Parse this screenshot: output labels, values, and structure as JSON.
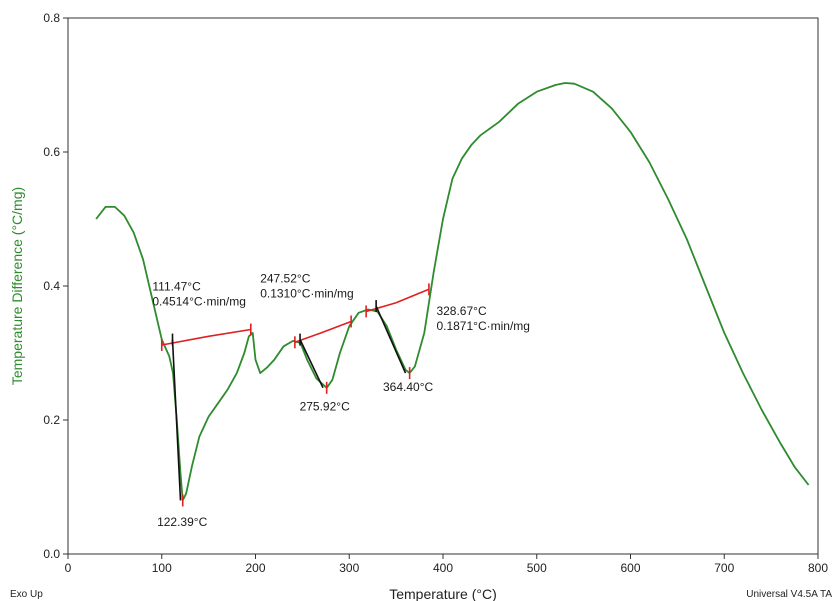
{
  "chart_data": {
    "type": "line",
    "xlabel": "Temperature (°C)",
    "ylabel": "Temperature Difference (°C/mg)",
    "xlim": [
      0,
      800
    ],
    "ylim": [
      0.0,
      0.8
    ],
    "x_ticks": [
      "0",
      "100",
      "200",
      "300",
      "400",
      "500",
      "600",
      "700",
      "800"
    ],
    "y_ticks": [
      "0.0",
      "0.2",
      "0.4",
      "0.6",
      "0.8"
    ],
    "footer_left": "Exo Up",
    "footer_right": "Universal V4.5A TA",
    "colors": {
      "curve": "#2e8b2e",
      "baseline": "#e02020",
      "tangent": "#111111",
      "axis_title_y": "#2e8b2e"
    },
    "series": [
      {
        "color": "#2e8b2e",
        "points": [
          [
            30,
            0.5
          ],
          [
            40,
            0.518
          ],
          [
            50,
            0.518
          ],
          [
            60,
            0.505
          ],
          [
            70,
            0.48
          ],
          [
            80,
            0.44
          ],
          [
            90,
            0.38
          ],
          [
            100,
            0.32
          ],
          [
            108,
            0.295
          ],
          [
            112,
            0.27
          ],
          [
            116,
            0.2
          ],
          [
            120,
            0.12
          ],
          [
            122.39,
            0.08
          ],
          [
            126,
            0.09
          ],
          [
            132,
            0.13
          ],
          [
            140,
            0.175
          ],
          [
            150,
            0.205
          ],
          [
            160,
            0.225
          ],
          [
            170,
            0.245
          ],
          [
            180,
            0.27
          ],
          [
            188,
            0.3
          ],
          [
            193,
            0.325
          ],
          [
            197,
            0.33
          ],
          [
            200,
            0.29
          ],
          [
            205,
            0.27
          ],
          [
            212,
            0.278
          ],
          [
            220,
            0.29
          ],
          [
            230,
            0.31
          ],
          [
            240,
            0.318
          ],
          [
            248,
            0.315
          ],
          [
            255,
            0.29
          ],
          [
            265,
            0.262
          ],
          [
            275.92,
            0.248
          ],
          [
            282,
            0.26
          ],
          [
            290,
            0.3
          ],
          [
            300,
            0.34
          ],
          [
            310,
            0.36
          ],
          [
            320,
            0.365
          ],
          [
            330,
            0.362
          ],
          [
            340,
            0.34
          ],
          [
            350,
            0.305
          ],
          [
            360,
            0.275
          ],
          [
            364.4,
            0.27
          ],
          [
            370,
            0.28
          ],
          [
            380,
            0.33
          ],
          [
            390,
            0.42
          ],
          [
            400,
            0.5
          ],
          [
            410,
            0.56
          ],
          [
            420,
            0.59
          ],
          [
            430,
            0.61
          ],
          [
            440,
            0.625
          ],
          [
            460,
            0.645
          ],
          [
            480,
            0.672
          ],
          [
            500,
            0.69
          ],
          [
            520,
            0.7
          ],
          [
            530,
            0.703
          ],
          [
            540,
            0.702
          ],
          [
            560,
            0.69
          ],
          [
            580,
            0.665
          ],
          [
            600,
            0.63
          ],
          [
            620,
            0.585
          ],
          [
            640,
            0.53
          ],
          [
            660,
            0.47
          ],
          [
            680,
            0.4
          ],
          [
            700,
            0.33
          ],
          [
            720,
            0.27
          ],
          [
            740,
            0.215
          ],
          [
            760,
            0.165
          ],
          [
            775,
            0.13
          ],
          [
            790,
            0.103
          ]
        ]
      }
    ],
    "baselines": [
      {
        "color": "#e02020",
        "points": [
          [
            100,
            0.312
          ],
          [
            150,
            0.325
          ],
          [
            195,
            0.335
          ]
        ]
      },
      {
        "color": "#e02020",
        "points": [
          [
            242,
            0.316
          ],
          [
            270,
            0.33
          ],
          [
            302,
            0.347
          ]
        ]
      },
      {
        "color": "#e02020",
        "points": [
          [
            318,
            0.362
          ],
          [
            350,
            0.375
          ],
          [
            385,
            0.395
          ]
        ]
      }
    ],
    "tangents": [
      {
        "color": "#111111",
        "points": [
          [
            111.47,
            0.32
          ],
          [
            120,
            0.08
          ]
        ]
      },
      {
        "color": "#111111",
        "points": [
          [
            247.52,
            0.32
          ],
          [
            272,
            0.248
          ]
        ]
      },
      {
        "color": "#111111",
        "points": [
          [
            328.67,
            0.37
          ],
          [
            360,
            0.27
          ]
        ]
      }
    ],
    "markers": [
      {
        "color": "#e02020",
        "point": [
          100,
          0.312
        ]
      },
      {
        "color": "#e02020",
        "point": [
          195,
          0.335
        ]
      },
      {
        "color": "#e02020",
        "point": [
          242,
          0.316
        ]
      },
      {
        "color": "#e02020",
        "point": [
          302,
          0.347
        ]
      },
      {
        "color": "#e02020",
        "point": [
          318,
          0.362
        ]
      },
      {
        "color": "#e02020",
        "point": [
          385,
          0.395
        ]
      },
      {
        "color": "#111111",
        "point": [
          111.47,
          0.32
        ]
      },
      {
        "color": "#111111",
        "point": [
          247.52,
          0.32
        ]
      },
      {
        "color": "#111111",
        "point": [
          328.67,
          0.37
        ]
      },
      {
        "color": "#e02020",
        "point": [
          122.39,
          0.08
        ]
      },
      {
        "color": "#e02020",
        "point": [
          275.92,
          0.248
        ]
      },
      {
        "color": "#e02020",
        "point": [
          364.4,
          0.27
        ]
      }
    ],
    "annotations": [
      {
        "lines": [
          "111.47°C",
          "0.4514°C·min/mg"
        ],
        "at": [
          90,
          0.393
        ]
      },
      {
        "lines": [
          "247.52°C",
          "0.1310°C·min/mg"
        ],
        "at": [
          205,
          0.405
        ]
      },
      {
        "lines": [
          "328.67°C",
          "0.1871°C·min/mg"
        ],
        "at": [
          393,
          0.357
        ]
      },
      {
        "lines": [
          "122.39°C"
        ],
        "at": [
          95,
          0.042
        ]
      },
      {
        "lines": [
          "275.92°C"
        ],
        "at": [
          247,
          0.214
        ]
      },
      {
        "lines": [
          "364.40°C"
        ],
        "at": [
          336,
          0.243
        ]
      }
    ]
  }
}
